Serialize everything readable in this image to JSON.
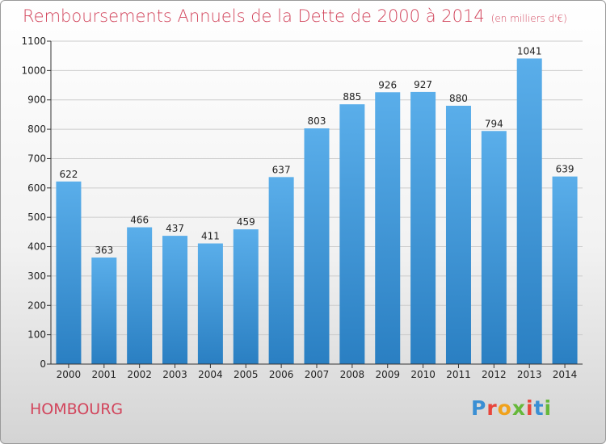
{
  "header": {
    "title": "Remboursements Annuels de la Dette de 2000 à 2014",
    "unit": "(en milliers d'€)"
  },
  "footer": {
    "commune": "HOMBOURG",
    "logo_letters": [
      "P",
      "r",
      "o",
      "x",
      "i",
      "t",
      "i"
    ],
    "logo_colors": [
      "#3a8fd4",
      "#e8463c",
      "#f0a21c",
      "#66b83a",
      "#e8463c",
      "#3a8fd4",
      "#66b83a"
    ]
  },
  "colors": {
    "title": "#d2455c",
    "bar_top": "#5aaeea",
    "bar_bottom": "#2a7fc2",
    "grid": "#cccccc"
  },
  "chart_data": {
    "type": "bar",
    "title": "Remboursements Annuels de la Dette de 2000 à 2014",
    "subtitle": "(en milliers d'€)",
    "categories": [
      "2000",
      "2001",
      "2002",
      "2003",
      "2004",
      "2005",
      "2006",
      "2007",
      "2008",
      "2009",
      "2010",
      "2011",
      "2012",
      "2013",
      "2014"
    ],
    "values": [
      622,
      363,
      466,
      437,
      411,
      459,
      637,
      803,
      885,
      926,
      927,
      880,
      794,
      1041,
      639
    ],
    "ylim": [
      0,
      1100
    ],
    "yticks": [
      0,
      100,
      200,
      300,
      400,
      500,
      600,
      700,
      800,
      900,
      1000,
      1100
    ],
    "grid": true,
    "xlabel": "",
    "ylabel": ""
  }
}
